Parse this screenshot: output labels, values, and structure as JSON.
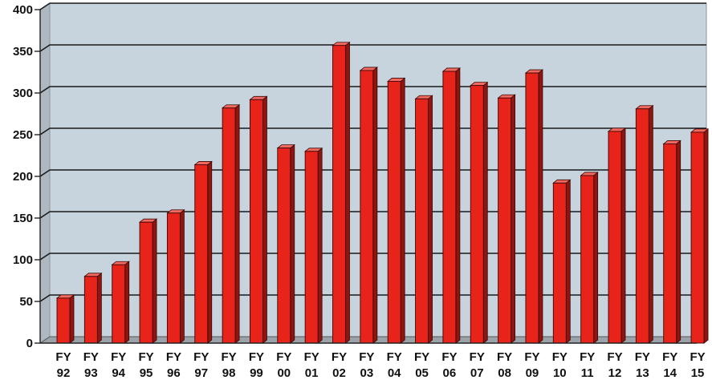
{
  "chart_data": {
    "type": "bar",
    "title": "",
    "xlabel": "",
    "ylabel": "",
    "ylim": [
      0,
      400
    ],
    "yticks": [
      "0",
      "50",
      "100",
      "150",
      "200",
      "250",
      "300",
      "350",
      "400"
    ],
    "grid": true,
    "categories": [
      [
        "FY",
        "92"
      ],
      [
        "FY",
        "93"
      ],
      [
        "FY",
        "94"
      ],
      [
        "FY",
        "95"
      ],
      [
        "FY",
        "96"
      ],
      [
        "FY",
        "97"
      ],
      [
        "FY",
        "98"
      ],
      [
        "FY",
        "99"
      ],
      [
        "FY",
        "00"
      ],
      [
        "FY",
        "01"
      ],
      [
        "FY",
        "02"
      ],
      [
        "FY",
        "03"
      ],
      [
        "FY",
        "04"
      ],
      [
        "FY",
        "05"
      ],
      [
        "FY",
        "06"
      ],
      [
        "FY",
        "07"
      ],
      [
        "FY",
        "08"
      ],
      [
        "FY",
        "09"
      ],
      [
        "FY",
        "10"
      ],
      [
        "FY",
        "11"
      ],
      [
        "FY",
        "12"
      ],
      [
        "FY",
        "13"
      ],
      [
        "FY",
        "14"
      ],
      [
        "FY",
        "15"
      ]
    ],
    "values": [
      54,
      80,
      94,
      145,
      156,
      214,
      282,
      292,
      234,
      230,
      357,
      327,
      314,
      293,
      326,
      309,
      294,
      324,
      192,
      201,
      254,
      281,
      239,
      253
    ],
    "colors": {
      "bar_front": "#e8231a",
      "bar_side": "#8e1510",
      "bar_top": "#f26a5f",
      "plot_background": "#c7d4dd",
      "back_wall_edge": "#8a96a0",
      "floor": "#9aa3a9",
      "gridline": "#1a1a1a"
    }
  }
}
